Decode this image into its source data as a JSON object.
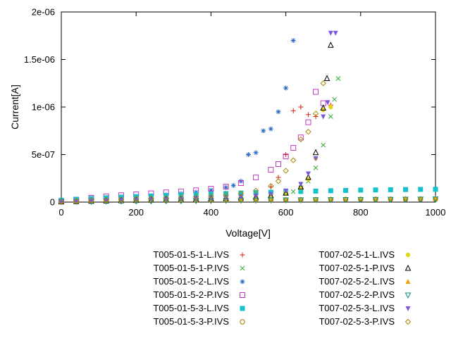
{
  "chart_data": {
    "type": "scatter",
    "title": "",
    "xlabel": "Voltage[V]",
    "ylabel": "Current[A]",
    "xlim": [
      0,
      1000
    ],
    "ylim": [
      0,
      2e-06
    ],
    "grid": false,
    "legend_position": "below-center-two-columns",
    "xticks": [
      0,
      200,
      400,
      600,
      800,
      1000
    ],
    "yticks": [
      {
        "value": 0,
        "label": "0"
      },
      {
        "value": 5e-07,
        "label": "5e-07"
      },
      {
        "value": 1e-06,
        "label": "1e-06"
      },
      {
        "value": 1.5e-06,
        "label": "1.5e-06"
      },
      {
        "value": 2e-06,
        "label": "2e-06"
      }
    ],
    "series": [
      {
        "name": "T005-01-5-1-L.IVS",
        "marker": "plus",
        "color": "#dd2016",
        "points": [
          [
            0,
            3e-09
          ],
          [
            40,
            8e-09
          ],
          [
            80,
            1.3e-08
          ],
          [
            120,
            1.8e-08
          ],
          [
            160,
            2.2e-08
          ],
          [
            200,
            2.6e-08
          ],
          [
            240,
            3e-08
          ],
          [
            280,
            3.4e-08
          ],
          [
            320,
            3.8e-08
          ],
          [
            360,
            4.3e-08
          ],
          [
            400,
            5e-08
          ],
          [
            440,
            6e-08
          ],
          [
            480,
            7.5e-08
          ],
          [
            520,
            1e-07
          ],
          [
            560,
            1.6e-07
          ],
          [
            580,
            2.6e-07
          ],
          [
            600,
            5e-07
          ],
          [
            620,
            9.6e-07
          ],
          [
            640,
            1e-06
          ],
          [
            660,
            9.2e-07
          ],
          [
            680,
            9e-07
          ],
          [
            700,
            9.7e-07
          ],
          [
            720,
            1.02e-06
          ]
        ]
      },
      {
        "name": "T005-01-5-1-P.IVS",
        "marker": "cross",
        "color": "#35a838",
        "points": [
          [
            0,
            2e-09
          ],
          [
            40,
            6e-09
          ],
          [
            80,
            1e-08
          ],
          [
            120,
            1.4e-08
          ],
          [
            160,
            1.8e-08
          ],
          [
            200,
            2.1e-08
          ],
          [
            240,
            2.4e-08
          ],
          [
            280,
            2.7e-08
          ],
          [
            320,
            3e-08
          ],
          [
            360,
            3.3e-08
          ],
          [
            400,
            3.7e-08
          ],
          [
            440,
            4.2e-08
          ],
          [
            480,
            4.8e-08
          ],
          [
            520,
            5.6e-08
          ],
          [
            560,
            6.8e-08
          ],
          [
            600,
            9e-08
          ],
          [
            620,
            1.1e-07
          ],
          [
            640,
            1.5e-07
          ],
          [
            660,
            2.2e-07
          ],
          [
            680,
            3.6e-07
          ],
          [
            700,
            6e-07
          ],
          [
            720,
            9e-07
          ],
          [
            730,
            1.08e-06
          ],
          [
            740,
            1.3e-06
          ]
        ]
      },
      {
        "name": "T005-01-5-2-L.IVS",
        "marker": "asterisk",
        "color": "#2a6cc4",
        "points": [
          [
            0,
            5e-09
          ],
          [
            40,
            1.5e-08
          ],
          [
            80,
            2.5e-08
          ],
          [
            120,
            3.5e-08
          ],
          [
            160,
            4.5e-08
          ],
          [
            200,
            5.5e-08
          ],
          [
            240,
            6.5e-08
          ],
          [
            280,
            7.5e-08
          ],
          [
            320,
            9e-08
          ],
          [
            360,
            1.05e-07
          ],
          [
            400,
            1.25e-07
          ],
          [
            440,
            1.55e-07
          ],
          [
            460,
            1.75e-07
          ],
          [
            480,
            2.2e-07
          ],
          [
            500,
            5e-07
          ],
          [
            520,
            5.2e-07
          ],
          [
            540,
            7.5e-07
          ],
          [
            560,
            7.7e-07
          ],
          [
            580,
            9.5e-07
          ],
          [
            600,
            1.2e-06
          ],
          [
            620,
            1.7e-06
          ]
        ]
      },
      {
        "name": "T005-01-5-2-P.IVS",
        "marker": "square-open",
        "color": "#bf3abf",
        "points": [
          [
            0,
            8e-09
          ],
          [
            40,
            2.5e-08
          ],
          [
            80,
            4.5e-08
          ],
          [
            120,
            6e-08
          ],
          [
            160,
            7.2e-08
          ],
          [
            200,
            8.2e-08
          ],
          [
            240,
            9.2e-08
          ],
          [
            280,
            1.02e-07
          ],
          [
            320,
            1.12e-07
          ],
          [
            360,
            1.24e-07
          ],
          [
            400,
            1.4e-07
          ],
          [
            440,
            1.62e-07
          ],
          [
            480,
            2e-07
          ],
          [
            520,
            2.6e-07
          ],
          [
            560,
            3.4e-07
          ],
          [
            580,
            4e-07
          ],
          [
            600,
            4.8e-07
          ],
          [
            620,
            5.7e-07
          ],
          [
            640,
            6.8e-07
          ],
          [
            660,
            8.4e-07
          ],
          [
            680,
            1.16e-06
          ],
          [
            700,
            1.04e-06
          ]
        ]
      },
      {
        "name": "T005-01-5-3-L.IVS",
        "marker": "square-filled",
        "color": "#12c2cc",
        "points": [
          [
            0,
            2e-08
          ],
          [
            40,
            3e-08
          ],
          [
            80,
            3.8e-08
          ],
          [
            120,
            4.5e-08
          ],
          [
            160,
            5.2e-08
          ],
          [
            200,
            5.8e-08
          ],
          [
            240,
            6.4e-08
          ],
          [
            280,
            7e-08
          ],
          [
            320,
            7.5e-08
          ],
          [
            360,
            8e-08
          ],
          [
            400,
            8.5e-08
          ],
          [
            440,
            9e-08
          ],
          [
            480,
            9.5e-08
          ],
          [
            520,
            1e-07
          ],
          [
            560,
            1.04e-07
          ],
          [
            600,
            1.08e-07
          ],
          [
            640,
            1.12e-07
          ],
          [
            680,
            1.16e-07
          ],
          [
            720,
            1.2e-07
          ],
          [
            760,
            1.23e-07
          ],
          [
            800,
            1.26e-07
          ],
          [
            840,
            1.28e-07
          ],
          [
            880,
            1.3e-07
          ],
          [
            920,
            1.32e-07
          ],
          [
            960,
            1.34e-07
          ],
          [
            1000,
            1.35e-07
          ]
        ]
      },
      {
        "name": "T005-01-5-3-P.IVS",
        "marker": "circle-open",
        "color": "#9c7a06",
        "points": [
          [
            0,
            5e-09
          ],
          [
            40,
            7e-09
          ],
          [
            80,
            9e-09
          ],
          [
            120,
            1.1e-08
          ],
          [
            160,
            1.2e-08
          ],
          [
            200,
            1.3e-08
          ],
          [
            240,
            1.4e-08
          ],
          [
            280,
            1.5e-08
          ],
          [
            320,
            1.6e-08
          ],
          [
            360,
            1.7e-08
          ],
          [
            400,
            1.8e-08
          ],
          [
            440,
            1.9e-08
          ],
          [
            480,
            2e-08
          ],
          [
            520,
            2.1e-08
          ],
          [
            560,
            2.2e-08
          ],
          [
            600,
            2.3e-08
          ],
          [
            640,
            2.4e-08
          ],
          [
            680,
            2.5e-08
          ],
          [
            720,
            2.6e-08
          ],
          [
            760,
            2.7e-08
          ],
          [
            800,
            2.8e-08
          ],
          [
            840,
            2.8e-08
          ],
          [
            880,
            2.9e-08
          ],
          [
            920,
            2.9e-08
          ],
          [
            960,
            3e-08
          ],
          [
            1000,
            3e-08
          ]
        ]
      },
      {
        "name": "T007-02-5-1-L.IVS",
        "marker": "circle-filled",
        "color": "#e3d51c",
        "points": [
          [
            0,
            4e-09
          ],
          [
            40,
            8e-09
          ],
          [
            80,
            1.2e-08
          ],
          [
            120,
            1.6e-08
          ],
          [
            160,
            2e-08
          ],
          [
            200,
            2.3e-08
          ],
          [
            240,
            2.6e-08
          ],
          [
            280,
            2.9e-08
          ],
          [
            320,
            3.2e-08
          ],
          [
            360,
            3.5e-08
          ],
          [
            400,
            3.9e-08
          ],
          [
            440,
            4.4e-08
          ],
          [
            480,
            5e-08
          ],
          [
            520,
            6e-08
          ],
          [
            560,
            7.5e-08
          ],
          [
            600,
            1e-07
          ],
          [
            640,
            1.5e-07
          ],
          [
            660,
            2.4e-07
          ],
          [
            680,
            4.6e-07
          ],
          [
            700,
            9.7e-07
          ],
          [
            720,
            1e-06
          ]
        ]
      },
      {
        "name": "T007-02-5-1-P.IVS",
        "marker": "triangle-up-open",
        "color": "#000000",
        "points": [
          [
            0,
            3e-09
          ],
          [
            40,
            6e-09
          ],
          [
            80,
            9e-09
          ],
          [
            120,
            1.2e-08
          ],
          [
            160,
            1.5e-08
          ],
          [
            200,
            1.8e-08
          ],
          [
            240,
            2.1e-08
          ],
          [
            280,
            2.4e-08
          ],
          [
            320,
            2.7e-08
          ],
          [
            360,
            3e-08
          ],
          [
            400,
            3.4e-08
          ],
          [
            440,
            3.9e-08
          ],
          [
            480,
            4.5e-08
          ],
          [
            520,
            5.4e-08
          ],
          [
            560,
            6.8e-08
          ],
          [
            600,
            9.5e-08
          ],
          [
            640,
            1.6e-07
          ],
          [
            660,
            2.6e-07
          ],
          [
            680,
            5.2e-07
          ],
          [
            700,
            9.9e-07
          ],
          [
            710,
            1.3e-06
          ],
          [
            720,
            1.65e-06
          ]
        ]
      },
      {
        "name": "T007-02-5-2-L.IVS",
        "marker": "triangle-up-filled",
        "color": "#f0a000",
        "points": [
          [
            0,
            6e-09
          ],
          [
            40,
            9e-09
          ],
          [
            80,
            1.2e-08
          ],
          [
            120,
            1.4e-08
          ],
          [
            160,
            1.6e-08
          ],
          [
            200,
            1.8e-08
          ],
          [
            240,
            2e-08
          ],
          [
            280,
            2.1e-08
          ],
          [
            320,
            2.2e-08
          ],
          [
            360,
            2.3e-08
          ],
          [
            400,
            2.4e-08
          ],
          [
            440,
            2.5e-08
          ],
          [
            480,
            2.6e-08
          ],
          [
            520,
            2.7e-08
          ],
          [
            560,
            2.8e-08
          ],
          [
            600,
            2.9e-08
          ],
          [
            640,
            3e-08
          ],
          [
            680,
            3.1e-08
          ],
          [
            720,
            3.2e-08
          ],
          [
            760,
            3.3e-08
          ],
          [
            800,
            3.4e-08
          ],
          [
            840,
            3.5e-08
          ],
          [
            880,
            3.6e-08
          ],
          [
            920,
            3.7e-08
          ],
          [
            960,
            3.8e-08
          ],
          [
            1000,
            4e-08
          ]
        ]
      },
      {
        "name": "T007-02-5-2-P.IVS",
        "marker": "triangle-down-open",
        "color": "#0b8f80",
        "points": [
          [
            0,
            4e-09
          ],
          [
            40,
            6e-09
          ],
          [
            80,
            8e-09
          ],
          [
            120,
            1e-08
          ],
          [
            160,
            1.1e-08
          ],
          [
            200,
            1.2e-08
          ],
          [
            240,
            1.3e-08
          ],
          [
            280,
            1.4e-08
          ],
          [
            320,
            1.5e-08
          ],
          [
            360,
            1.6e-08
          ],
          [
            400,
            1.7e-08
          ],
          [
            440,
            1.8e-08
          ],
          [
            480,
            1.9e-08
          ],
          [
            520,
            2e-08
          ],
          [
            560,
            2.1e-08
          ],
          [
            600,
            2.2e-08
          ],
          [
            640,
            2.3e-08
          ],
          [
            680,
            2.4e-08
          ],
          [
            720,
            2.5e-08
          ],
          [
            760,
            2.6e-08
          ],
          [
            800,
            2.7e-08
          ],
          [
            840,
            2.8e-08
          ],
          [
            880,
            2.9e-08
          ],
          [
            920,
            3e-08
          ],
          [
            960,
            3.1e-08
          ],
          [
            1000,
            3.2e-08
          ]
        ]
      },
      {
        "name": "T007-02-5-3-L.IVS",
        "marker": "triangle-down-filled",
        "color": "#7c58dd",
        "points": [
          [
            0,
            5e-09
          ],
          [
            40,
            9e-09
          ],
          [
            80,
            1.3e-08
          ],
          [
            120,
            1.7e-08
          ],
          [
            160,
            2e-08
          ],
          [
            200,
            2.3e-08
          ],
          [
            240,
            2.6e-08
          ],
          [
            280,
            2.9e-08
          ],
          [
            320,
            3.2e-08
          ],
          [
            360,
            3.6e-08
          ],
          [
            400,
            4e-08
          ],
          [
            440,
            4.6e-08
          ],
          [
            480,
            5.4e-08
          ],
          [
            520,
            6.6e-08
          ],
          [
            560,
            8.4e-08
          ],
          [
            600,
            1.2e-07
          ],
          [
            640,
            1.9e-07
          ],
          [
            660,
            3e-07
          ],
          [
            680,
            4.6e-07
          ],
          [
            700,
            9e-07
          ],
          [
            712,
            1.05e-06
          ],
          [
            720,
            1.78e-06
          ],
          [
            733,
            1.78e-06
          ]
        ]
      },
      {
        "name": "T007-02-5-3-P.IVS",
        "marker": "diamond-open",
        "color": "#a88a0a",
        "points": [
          [
            0,
            6e-09
          ],
          [
            40,
            1.2e-08
          ],
          [
            80,
            1.8e-08
          ],
          [
            120,
            2.4e-08
          ],
          [
            160,
            3e-08
          ],
          [
            200,
            3.5e-08
          ],
          [
            240,
            4e-08
          ],
          [
            280,
            4.5e-08
          ],
          [
            320,
            5e-08
          ],
          [
            360,
            5.6e-08
          ],
          [
            400,
            6.4e-08
          ],
          [
            440,
            7.4e-08
          ],
          [
            480,
            9e-08
          ],
          [
            520,
            1.2e-07
          ],
          [
            560,
            1.7e-07
          ],
          [
            580,
            2.2e-07
          ],
          [
            600,
            3.3e-07
          ],
          [
            620,
            4.4e-07
          ],
          [
            640,
            6.6e-07
          ],
          [
            660,
            7.4e-07
          ],
          [
            680,
            9.3e-07
          ],
          [
            700,
            1.25e-06
          ]
        ]
      }
    ]
  }
}
